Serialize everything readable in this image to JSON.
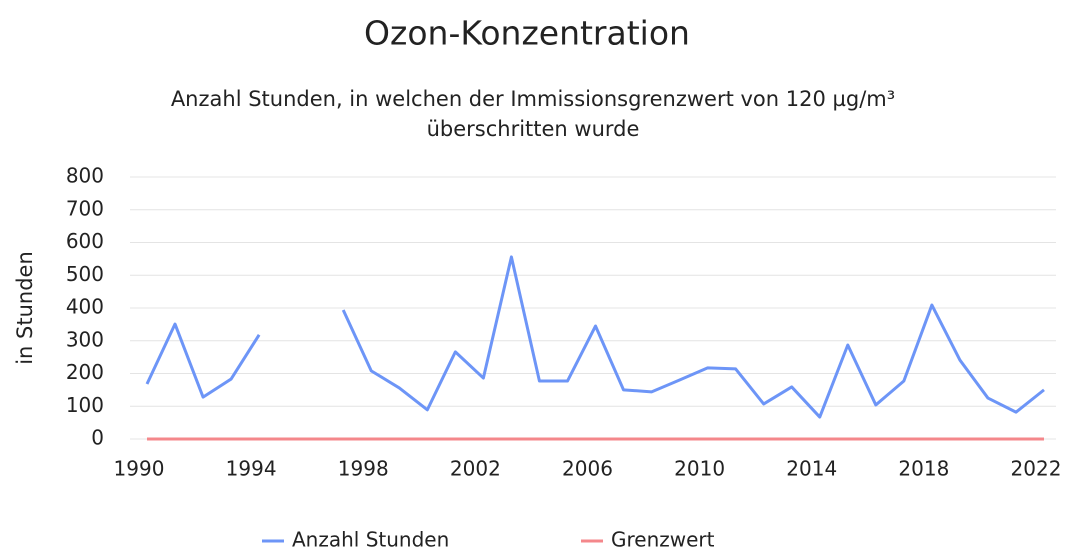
{
  "chart_data": {
    "type": "line",
    "title": "Ozon-Konzentration",
    "subtitle": [
      "Anzahl Stunden, in welchen der Immissionsgrenzwert von 120 µg/m³",
      "überschritten wurde"
    ],
    "y_label": "in Stunden",
    "x": [
      1990,
      1991,
      1992,
      1993,
      1994,
      1995,
      1996,
      1997,
      1998,
      1999,
      2000,
      2001,
      2002,
      2003,
      2004,
      2005,
      2006,
      2007,
      2008,
      2009,
      2010,
      2011,
      2012,
      2013,
      2014,
      2015,
      2016,
      2017,
      2018,
      2019,
      2020,
      2021,
      2022
    ],
    "series": [
      {
        "name": "Anzahl Stunden",
        "color": "#6d95f7",
        "values": [
          168,
          351,
          128,
          183,
          318,
          null,
          null,
          394,
          208,
          156,
          89,
          266,
          186,
          556,
          177,
          177,
          345,
          150,
          144,
          180,
          217,
          214,
          107,
          159,
          67,
          287,
          104,
          177,
          409,
          241,
          125,
          82,
          150
        ]
      },
      {
        "name": "Grenzwert",
        "color": "#f4878b",
        "values": [
          0,
          0,
          0,
          0,
          0,
          0,
          0,
          0,
          0,
          0,
          0,
          0,
          0,
          0,
          0,
          0,
          0,
          0,
          0,
          0,
          0,
          0,
          0,
          0,
          0,
          0,
          0,
          0,
          0,
          0,
          0,
          0,
          0
        ]
      }
    ],
    "xlim": [
      1990,
      2022
    ],
    "xticks": [
      1990,
      1994,
      1998,
      2002,
      2006,
      2010,
      2014,
      2018,
      2022
    ],
    "ylim": [
      0,
      800
    ],
    "yticks": [
      0,
      100,
      200,
      300,
      400,
      500,
      600,
      700,
      800
    ],
    "grid": true,
    "legend": "bottom"
  }
}
